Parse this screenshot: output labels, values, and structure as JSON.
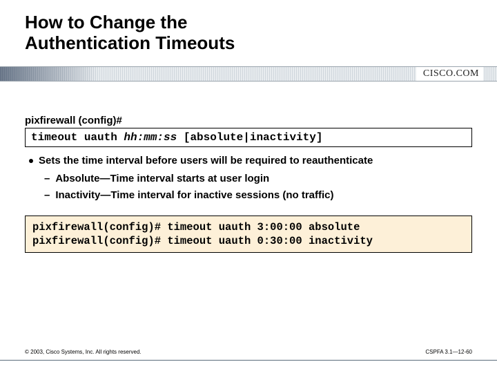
{
  "title_line1": "How to Change the",
  "title_line2": "Authentication Timeouts",
  "brand": "CISCO.COM",
  "prompt_label": "pixfirewall (config)#",
  "syntax": {
    "cmd": "timeout uauth ",
    "arg_italic": "hh:mm:ss",
    "rest": " [absolute|inactivity]"
  },
  "bullet_main": "Sets the time interval before users will be required to reauthenticate",
  "bullet_sub1": "Absolute—Time interval starts at user login",
  "bullet_sub2": "Inactivity—Time interval for inactive sessions (no traffic)",
  "example_line1": "pixfirewall(config)# timeout uauth 3:00:00 absolute",
  "example_line2": "pixfirewall(config)# timeout uauth 0:30:00 inactivity",
  "copyright": "© 2003, Cisco Systems, Inc. All rights reserved.",
  "slide_id": "CSPFA 3.1—12-60",
  "colors": {
    "example_bg": "#fdf0d8",
    "text": "#000000",
    "page_bg": "#ffffff",
    "rule": "#5a6b7a"
  }
}
